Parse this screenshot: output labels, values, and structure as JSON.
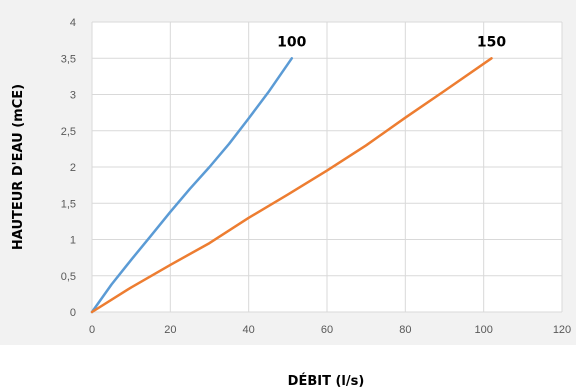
{
  "chart_data": {
    "type": "line",
    "xlabel": "DÉBIT (l/s)",
    "ylabel": "HAUTEUR D'EAU (mCE)",
    "xlim": [
      0,
      120
    ],
    "ylim": [
      0,
      4
    ],
    "x_ticks": [
      0,
      20,
      40,
      60,
      80,
      100,
      120
    ],
    "y_ticks": [
      "0",
      "0,5",
      "1",
      "1,5",
      "2",
      "2,5",
      "3",
      "3,5",
      "4"
    ],
    "y_tick_values": [
      0,
      0.5,
      1,
      1.5,
      2,
      2.5,
      3,
      3.5,
      4
    ],
    "grid": "vertical and horizontal",
    "legend": "none",
    "plot_background": "#f2f2f2",
    "series": [
      {
        "name": "100",
        "color": "#5b9bd5",
        "x": [
          0,
          5,
          10,
          15,
          20,
          25,
          30,
          35,
          40,
          45,
          51
        ],
        "y": [
          0,
          0.38,
          0.72,
          1.05,
          1.38,
          1.7,
          2.0,
          2.32,
          2.67,
          3.03,
          3.5
        ]
      },
      {
        "name": "150",
        "color": "#ed7d31",
        "x": [
          0,
          10,
          20,
          30,
          40,
          50,
          60,
          70,
          80,
          90,
          102
        ],
        "y": [
          0,
          0.34,
          0.65,
          0.95,
          1.3,
          1.62,
          1.95,
          2.3,
          2.68,
          3.05,
          3.5
        ]
      }
    ]
  }
}
